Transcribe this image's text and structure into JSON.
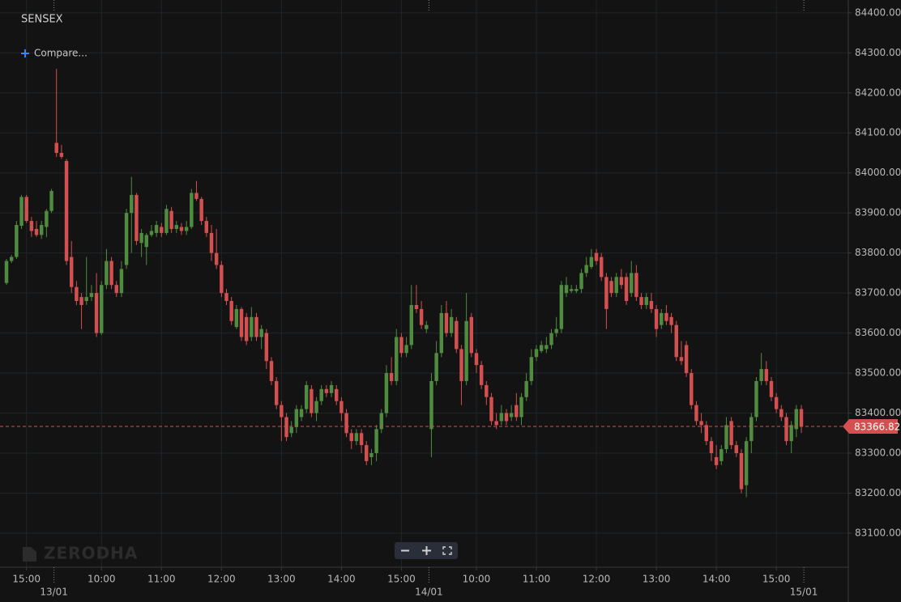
{
  "chart_data": {
    "type": "candlestick",
    "title": "SENSEX",
    "compare_label": "Compare...",
    "watermark": "ZERODHA",
    "up_color": "#4f8c3f",
    "down_color": "#d44f4f",
    "grid": true,
    "xlim": [
      -1.3,
      168.4
    ],
    "ylim": [
      83017,
      84432
    ],
    "yticks": [
      {
        "value": 84400,
        "label": "84400.00"
      },
      {
        "value": 84300,
        "label": "84300.00"
      },
      {
        "value": 84200,
        "label": "84200.00"
      },
      {
        "value": 84100,
        "label": "84100.00"
      },
      {
        "value": 84000,
        "label": "84000.00"
      },
      {
        "value": 83900,
        "label": "83900.00"
      },
      {
        "value": 83800,
        "label": "83800.00"
      },
      {
        "value": 83700,
        "label": "83700.00"
      },
      {
        "value": 83600,
        "label": "83600.00"
      },
      {
        "value": 83500,
        "label": "83500.00"
      },
      {
        "value": 83400,
        "label": "83400.00"
      },
      {
        "value": 83300,
        "label": "83300.00"
      },
      {
        "value": 83200,
        "label": "83200.00"
      },
      {
        "value": 83100,
        "label": "83100.00"
      }
    ],
    "xticks": [
      {
        "value": 4,
        "label": "15:00"
      },
      {
        "value": 19,
        "label": "10:00"
      },
      {
        "value": 31,
        "label": "11:00"
      },
      {
        "value": 43,
        "label": "12:00"
      },
      {
        "value": 55,
        "label": "13:00"
      },
      {
        "value": 67,
        "label": "14:00"
      },
      {
        "value": 79,
        "label": "15:00"
      },
      {
        "value": 94,
        "label": "10:00"
      },
      {
        "value": 106,
        "label": "11:00"
      },
      {
        "value": 118,
        "label": "12:00"
      },
      {
        "value": 130,
        "label": "13:00"
      },
      {
        "value": 142,
        "label": "14:00"
      },
      {
        "value": 154,
        "label": "15:00"
      }
    ],
    "day_ticks": [
      {
        "value": 9.5,
        "label": "13/01"
      },
      {
        "value": 84.5,
        "label": "14/01"
      },
      {
        "value": 159.5,
        "label": "15/01"
      }
    ],
    "open": [
      83725,
      83780,
      83790,
      83868,
      83940,
      83880,
      83860,
      83845,
      83865,
      83905,
      84075,
      84050,
      84030,
      83790,
      83715,
      83690,
      83680,
      83690,
      83700,
      83600,
      83720,
      83780,
      83720,
      83700,
      83770,
      83900,
      83945,
      83825,
      83815,
      83845,
      83850,
      83865,
      83850,
      83905,
      83860,
      83865,
      83855,
      83865,
      83950,
      83935,
      83880,
      83850,
      83800,
      83770,
      83700,
      83680,
      83615,
      83660,
      83640,
      83590,
      83640,
      83590,
      83600,
      83530,
      83480,
      83420,
      83390,
      83350,
      83365,
      83390,
      83410,
      83460,
      83400,
      83430,
      83460,
      83450,
      83460,
      83430,
      83400,
      83350,
      83330,
      83350,
      83320,
      83290,
      83300,
      83360,
      83400,
      83500,
      83480,
      83590,
      83550,
      83570,
      83670,
      83660,
      83610,
      83360,
      83480,
      83550,
      83650,
      83600,
      83630,
      83560,
      83480,
      83640,
      83550,
      83520,
      83470,
      83440,
      83380,
      83380,
      83400,
      83390,
      83420,
      83390,
      83440,
      83480,
      83540,
      83555,
      83560,
      83570,
      83600,
      83610,
      83700,
      83705,
      83705,
      83710,
      83750,
      83765,
      83800,
      83790,
      83740,
      83730,
      83700,
      83740,
      83740,
      83700,
      83750,
      83690,
      83670,
      83680,
      83660,
      83620,
      83650,
      83640,
      83620,
      83540,
      83570,
      83500,
      83420,
      83380,
      83370,
      83330,
      83290,
      83280,
      83310,
      83380,
      83320,
      83300,
      83220,
      83330,
      83390,
      83480,
      83510,
      83480,
      83440,
      83410,
      83390,
      83330,
      83360,
      83410
    ],
    "high": [
      83785,
      83795,
      83880,
      83945,
      83945,
      83890,
      83880,
      83880,
      83910,
      83960,
      84260,
      84070,
      84035,
      83830,
      83730,
      83700,
      83790,
      83720,
      83750,
      83730,
      83810,
      83790,
      83730,
      83780,
      83910,
      83990,
      83950,
      83860,
      83850,
      83870,
      83880,
      83875,
      83920,
      83915,
      83880,
      83875,
      83880,
      83960,
      83980,
      83940,
      83890,
      83870,
      83860,
      83780,
      83710,
      83690,
      83670,
      83665,
      83650,
      83665,
      83650,
      83620,
      83610,
      83540,
      83490,
      83430,
      83400,
      83380,
      83420,
      83420,
      83480,
      83470,
      83440,
      83470,
      83470,
      83480,
      83470,
      83440,
      83410,
      83360,
      83360,
      83360,
      83330,
      83310,
      83370,
      83410,
      83520,
      83540,
      83610,
      83600,
      83590,
      83720,
      83720,
      83680,
      83630,
      83500,
      83580,
      83670,
      83680,
      83660,
      83640,
      83570,
      83700,
      83650,
      83560,
      83530,
      83480,
      83450,
      83400,
      83420,
      83410,
      83420,
      83450,
      83450,
      83500,
      83560,
      83570,
      83580,
      83590,
      83610,
      83640,
      83730,
      83740,
      83720,
      83720,
      83760,
      83790,
      83810,
      83810,
      83800,
      83750,
      83740,
      83750,
      83760,
      83750,
      83780,
      83770,
      83700,
      83700,
      83700,
      83670,
      83660,
      83670,
      83650,
      83630,
      83580,
      83580,
      83510,
      83430,
      83400,
      83380,
      83340,
      83320,
      83320,
      83390,
      83390,
      83330,
      83310,
      83340,
      83400,
      83490,
      83550,
      83530,
      83490,
      83450,
      83420,
      83400,
      83380,
      83420,
      83420
    ],
    "low": [
      83720,
      83775,
      83785,
      83860,
      83875,
      83840,
      83840,
      83835,
      83840,
      83900,
      84040,
      84035,
      83770,
      83700,
      83670,
      83610,
      83670,
      83680,
      83590,
      83595,
      83710,
      83710,
      83690,
      83690,
      83760,
      83800,
      83820,
      83790,
      83770,
      83840,
      83840,
      83840,
      83845,
      83850,
      83850,
      83845,
      83845,
      83860,
      83930,
      83870,
      83840,
      83780,
      83760,
      83690,
      83670,
      83620,
      83610,
      83580,
      83570,
      83580,
      83580,
      83560,
      83510,
      83470,
      83410,
      83330,
      83330,
      83340,
      83350,
      83380,
      83400,
      83390,
      83380,
      83420,
      83440,
      83440,
      83420,
      83380,
      83340,
      83310,
      83320,
      83300,
      83270,
      83270,
      83280,
      83350,
      83390,
      83470,
      83470,
      83540,
      83540,
      83560,
      83650,
      83610,
      83600,
      83290,
      83470,
      83540,
      83590,
      83590,
      83550,
      83420,
      83470,
      83540,
      83500,
      83460,
      83420,
      83370,
      83360,
      83370,
      83370,
      83380,
      83380,
      83370,
      83430,
      83470,
      83530,
      83550,
      83550,
      83560,
      83590,
      83600,
      83690,
      83700,
      83700,
      83700,
      83740,
      83760,
      83770,
      83730,
      83610,
      83690,
      83690,
      83710,
      83670,
      83690,
      83680,
      83660,
      83660,
      83650,
      83590,
      83610,
      83620,
      83600,
      83530,
      83520,
      83490,
      83410,
      83370,
      83350,
      83320,
      83280,
      83260,
      83270,
      83300,
      83310,
      83290,
      83200,
      83190,
      83300,
      83380,
      83470,
      83470,
      83430,
      83400,
      83380,
      83320,
      83300,
      83340,
      83350
    ],
    "close": [
      83780,
      83790,
      83870,
      83940,
      83880,
      83855,
      83845,
      83870,
      83905,
      83955,
      84050,
      84040,
      83780,
      83715,
      83680,
      83670,
      83690,
      83700,
      83600,
      83720,
      83780,
      83720,
      83700,
      83760,
      83900,
      83945,
      83830,
      83850,
      83845,
      83855,
      83870,
      83850,
      83910,
      83860,
      83870,
      83855,
      83865,
      83950,
      83935,
      83880,
      83850,
      83800,
      83770,
      83700,
      83680,
      83630,
      83660,
      83590,
      83580,
      83640,
      83590,
      83610,
      83530,
      83480,
      83420,
      83390,
      83340,
      83365,
      83410,
      83410,
      83470,
      83400,
      83430,
      83460,
      83450,
      83470,
      83430,
      83400,
      83350,
      83330,
      83350,
      83320,
      83280,
      83300,
      83360,
      83400,
      83500,
      83480,
      83590,
      83550,
      83570,
      83670,
      83660,
      83620,
      83620,
      83480,
      83550,
      83650,
      83600,
      83640,
      83560,
      83480,
      83630,
      83550,
      83520,
      83470,
      83440,
      83380,
      83370,
      83400,
      83380,
      83400,
      83390,
      83440,
      83480,
      83540,
      83560,
      83570,
      83570,
      83600,
      83610,
      83720,
      83720,
      83710,
      83710,
      83750,
      83770,
      83790,
      83780,
      83740,
      83660,
      83700,
      83740,
      83720,
      83680,
      83750,
      83690,
      83670,
      83690,
      83660,
      83610,
      83650,
      83630,
      83620,
      83540,
      83530,
      83500,
      83420,
      83380,
      83370,
      83330,
      83300,
      83270,
      83310,
      83370,
      83320,
      83300,
      83210,
      83330,
      83390,
      83480,
      83510,
      83480,
      83440,
      83410,
      83390,
      83330,
      83370,
      83410,
      83366.82
    ]
  }
}
